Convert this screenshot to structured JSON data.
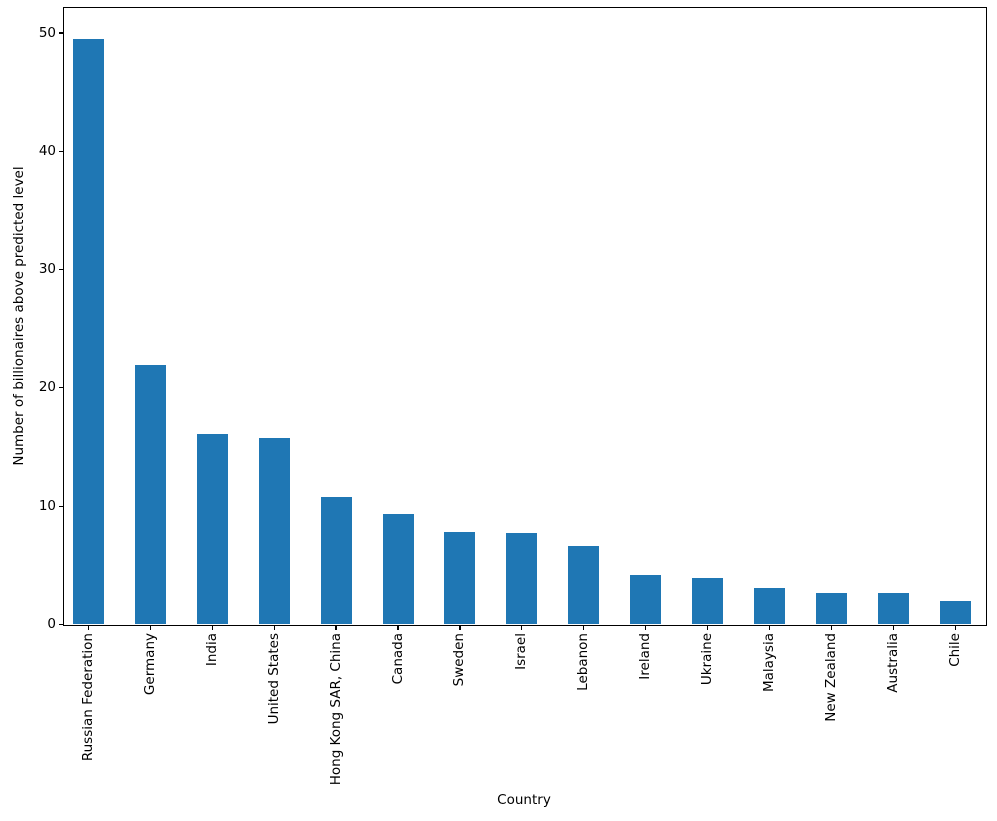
{
  "figure": {
    "background": "#ffffff"
  },
  "chart_data": {
    "type": "bar",
    "title": "",
    "xlabel": "Country",
    "ylabel": "Number of billionaires above predicted level",
    "categories": [
      "Russian Federation",
      "Germany",
      "India",
      "United States",
      "Hong Kong SAR, China",
      "Canada",
      "Sweden",
      "Israel",
      "Lebanon",
      "Ireland",
      "Ukraine",
      "Malaysia",
      "New Zealand",
      "Australia",
      "Chile"
    ],
    "values": [
      49.5,
      21.9,
      16.1,
      15.8,
      10.8,
      9.3,
      7.8,
      7.7,
      6.6,
      4.2,
      3.9,
      3.1,
      2.7,
      2.7,
      2.0
    ],
    "ylim": [
      0,
      52.2
    ],
    "yticks": [
      0,
      10,
      20,
      30,
      40,
      50
    ],
    "x_tick_rotation": 90,
    "bar_color": "#1f77b4",
    "axis_color": "#000000",
    "grid": false,
    "legend_position": "none"
  }
}
